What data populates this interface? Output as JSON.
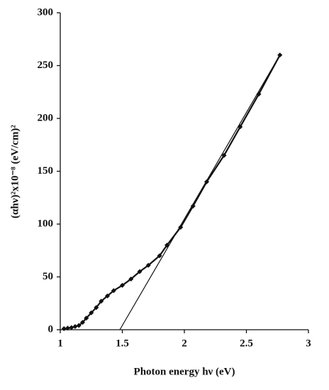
{
  "chart_data": {
    "type": "scatter",
    "xlabel": "Photon energy hν (eV)",
    "ylabel": "(αhν)²x10⁻⁸ (eV/cm)²",
    "series": [
      {
        "color": "#111111",
        "marker": true,
        "x": [
          1.03,
          1.06,
          1.09,
          1.12,
          1.15,
          1.18,
          1.21,
          1.25,
          1.29,
          1.33,
          1.38,
          1.43,
          1.5,
          1.57,
          1.64,
          1.71,
          1.8,
          1.86,
          1.97,
          2.07,
          2.18,
          2.32,
          2.45,
          2.6,
          2.77
        ],
        "values": [
          1,
          1.5,
          2,
          3,
          4,
          7,
          11,
          16,
          21,
          27,
          32,
          37,
          42,
          48,
          55,
          61,
          70,
          80,
          97,
          117,
          140,
          165,
          192,
          223,
          260
        ]
      },
      {
        "color": "#111111",
        "marker": false,
        "x": [
          1.48,
          2.77
        ],
        "values": [
          0,
          260
        ]
      }
    ],
    "xlim": [
      1,
      3
    ],
    "xticks": [
      1,
      1.5,
      2,
      2.5,
      3
    ],
    "ylim": [
      0,
      300
    ],
    "yticks": [
      0,
      50,
      100,
      150,
      200,
      250,
      300
    ],
    "grid": false
  }
}
